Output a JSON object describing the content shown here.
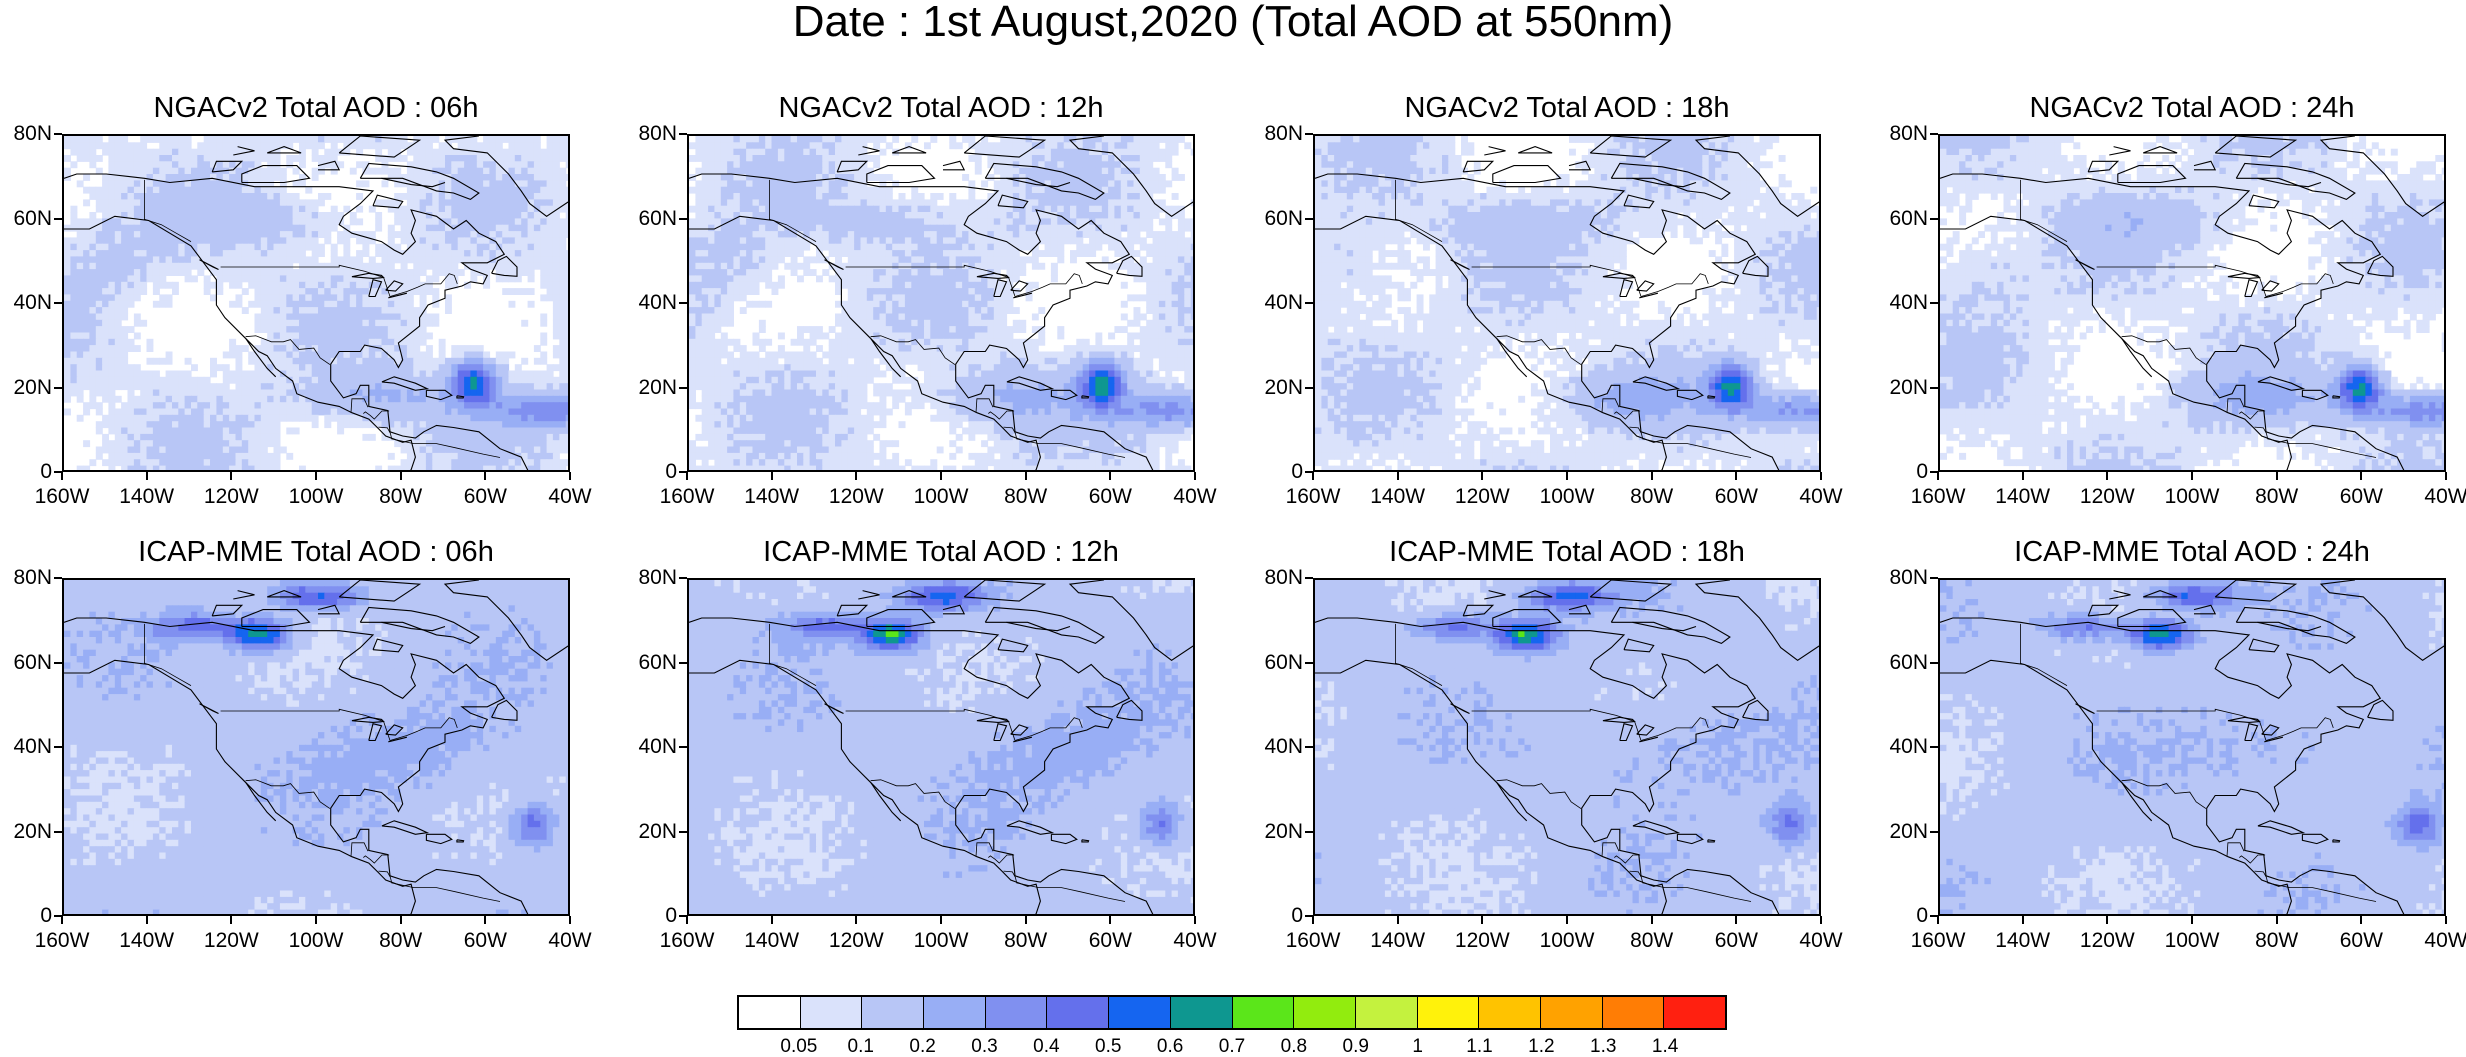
{
  "figure": {
    "title": "Date : 1st August,2020 (Total AOD at 550nm)"
  },
  "panels": [
    {
      "title": "NGACv2 Total AOD : 06h",
      "model": "ngac"
    },
    {
      "title": "NGACv2 Total AOD : 12h",
      "model": "ngac"
    },
    {
      "title": "NGACv2 Total AOD : 18h",
      "model": "ngac"
    },
    {
      "title": "NGACv2 Total AOD : 24h",
      "model": "ngac"
    },
    {
      "title": "ICAP-MME Total AOD : 06h",
      "model": "icap"
    },
    {
      "title": "ICAP-MME Total AOD : 12h",
      "model": "icap"
    },
    {
      "title": "ICAP-MME Total AOD : 18h",
      "model": "icap"
    },
    {
      "title": "ICAP-MME Total AOD : 24h",
      "model": "icap"
    }
  ],
  "axes": {
    "lat_labels": [
      "80N",
      "60N",
      "40N",
      "20N",
      "0"
    ],
    "lat_values": [
      80,
      60,
      40,
      20,
      0
    ],
    "lon_labels": [
      "160W",
      "140W",
      "120W",
      "100W",
      "80W",
      "60W",
      "40W"
    ],
    "lon_values": [
      -160,
      -140,
      -120,
      -100,
      -80,
      -60,
      -40
    ],
    "lat_range": [
      0,
      80
    ],
    "lon_range": [
      -160,
      -40
    ]
  },
  "colorbar": {
    "labels": [
      "0.05",
      "0.1",
      "0.2",
      "0.3",
      "0.4",
      "0.5",
      "0.6",
      "0.7",
      "0.8",
      "0.9",
      "1",
      "1.1",
      "1.2",
      "1.3",
      "1.4"
    ],
    "colors": [
      "#ffffff",
      "#dae2fb",
      "#b8c6f6",
      "#98aef5",
      "#8090f0",
      "#6470ec",
      "#1565f0",
      "#0e9790",
      "#5be61a",
      "#92ec0e",
      "#c4f23e",
      "#fff20b",
      "#ffc300",
      "#ffa200",
      "#ff7d05",
      "#ff2010"
    ]
  },
  "features": {
    "ngac": [
      {
        "name": "saharan-dust-core",
        "lon": -64,
        "lat": 22,
        "aod": 0.7
      },
      {
        "name": "saharan-dust-plume",
        "lon": -48,
        "lat": 14,
        "aod": 0.45
      },
      {
        "name": "caribbean-haze",
        "lon": -80,
        "lat": 18,
        "aod": 0.3
      }
    ],
    "icap": [
      {
        "name": "canadian-smoke",
        "lon": -115,
        "lat": 68,
        "aod": 0.8
      },
      {
        "name": "arctic-smoke",
        "lon": -100,
        "lat": 76,
        "aod": 0.6
      },
      {
        "name": "atlantic-dust",
        "lon": -48,
        "lat": 20,
        "aod": 0.45
      }
    ]
  }
}
